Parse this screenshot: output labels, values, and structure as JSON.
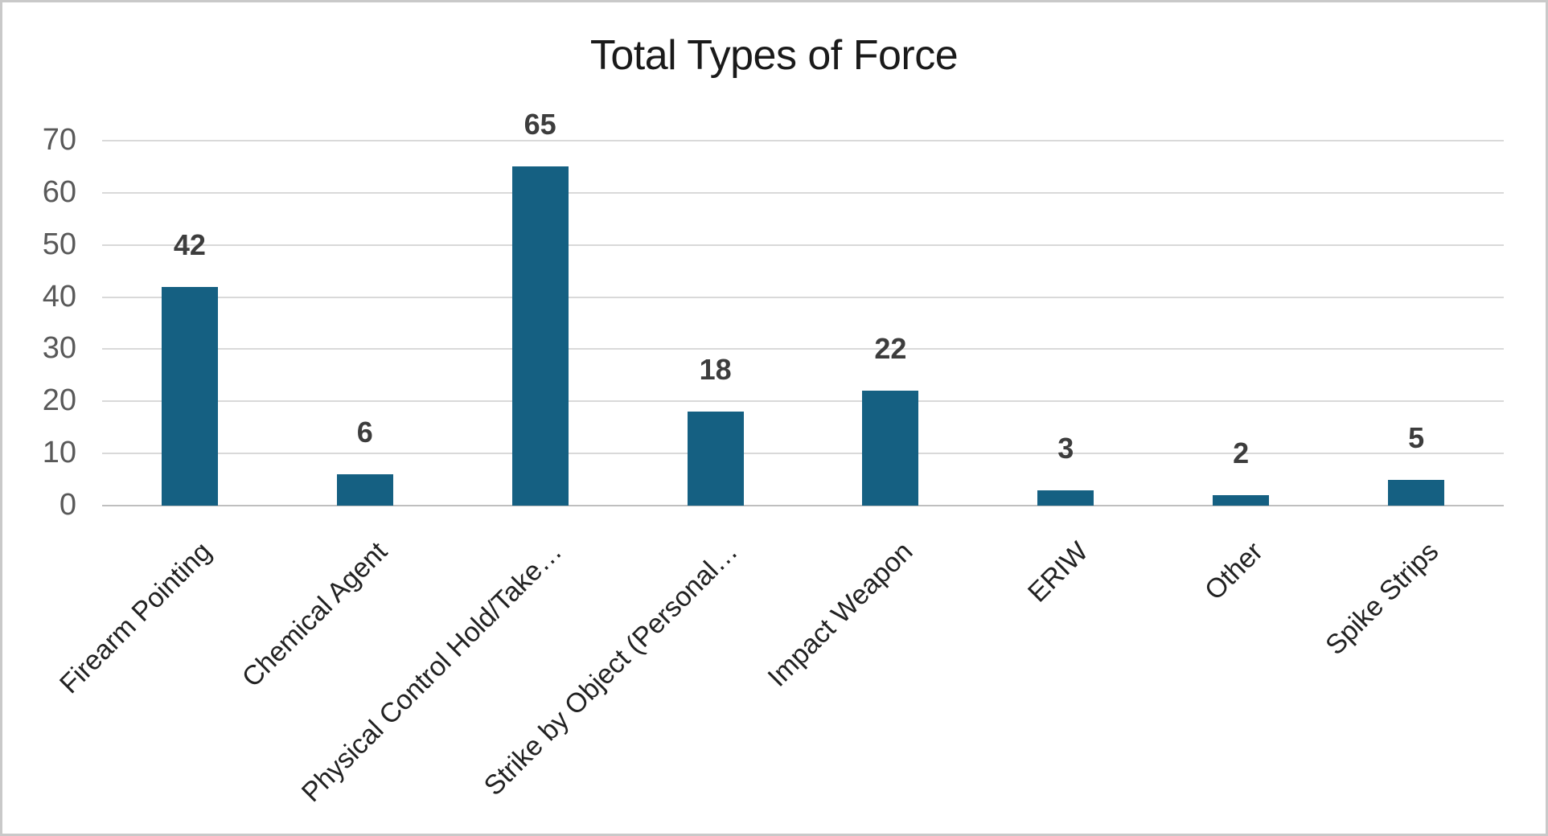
{
  "chart_data": {
    "type": "bar",
    "title": "Total Types of Force",
    "categories": [
      "Firearm Pointing",
      "Chemical Agent",
      "Physical Control Hold/Take…",
      "Strike by Object (Personal…",
      "Impact Weapon",
      "ERIW",
      "Other",
      "Spike Strips"
    ],
    "values": [
      42,
      6,
      65,
      18,
      22,
      3,
      2,
      5
    ],
    "xlabel": "",
    "ylabel": "",
    "ylim": [
      0,
      70
    ],
    "yticks": [
      0,
      10,
      20,
      30,
      40,
      50,
      60,
      70
    ],
    "grid": true,
    "legend_position": "none",
    "data_labels": true,
    "category_label_rotation_deg": 45,
    "colors": {
      "bar": "#156082",
      "gridline": "#D9D9D9",
      "axis_line": "#BFBFBF",
      "tick_label": "#595959",
      "data_label": "#3D3D3D",
      "category_label": "#222222",
      "title": "#1A1A1A",
      "frame_border": "#C9C9C9",
      "background": "#FFFFFF"
    }
  }
}
